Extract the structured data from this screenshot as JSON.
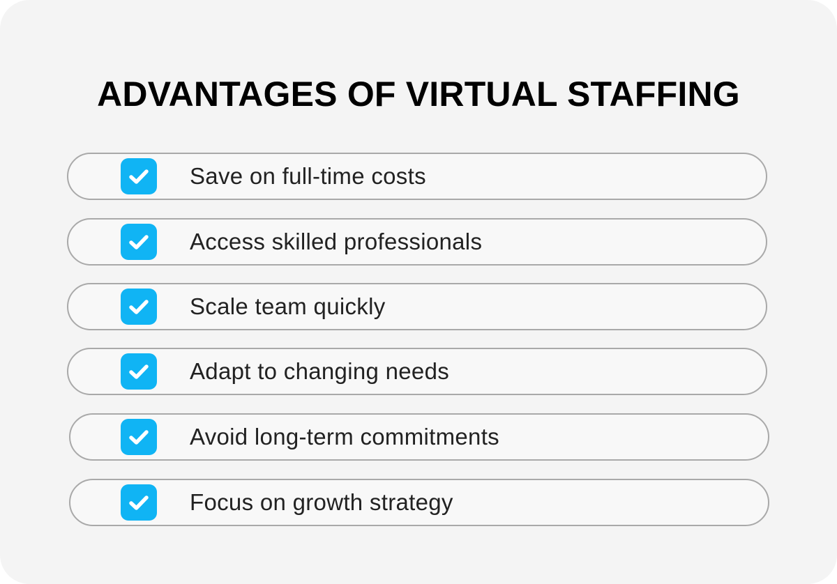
{
  "title": "ADVANTAGES OF VIRTUAL STAFFING",
  "colors": {
    "background": "#f4f4f4",
    "check_box": "#10b4f4",
    "item_border": "#a9a9a9"
  },
  "items": [
    {
      "label": "Save on full-time costs",
      "icon": "checkmark-icon"
    },
    {
      "label": "Access skilled professionals",
      "icon": "checkmark-icon"
    },
    {
      "label": "Scale team quickly",
      "icon": "checkmark-icon"
    },
    {
      "label": "Adapt to changing needs",
      "icon": "checkmark-icon"
    },
    {
      "label": "Avoid long-term commitments",
      "icon": "checkmark-icon"
    },
    {
      "label": "Focus on growth strategy",
      "icon": "checkmark-icon"
    }
  ]
}
